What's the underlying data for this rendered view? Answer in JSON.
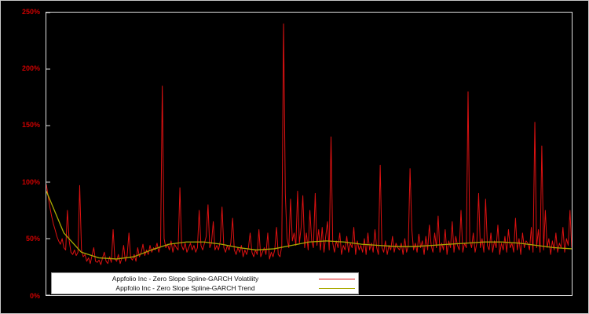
{
  "chart_data": {
    "type": "line",
    "title": "",
    "xlabel": "",
    "ylabel": "",
    "ylim": [
      0,
      250
    ],
    "yticks": [
      0,
      50,
      100,
      150,
      200,
      250
    ],
    "ytick_labels": [
      "0%",
      "50%",
      "100%",
      "150%",
      "200%",
      "250%"
    ],
    "xtick_labels": [],
    "grid": false,
    "background_color": "#000000",
    "plot_border_color": "#e0e0e0",
    "tick_label_color": "#cc0000",
    "legend_position": "bottom-left-inside",
    "legend_background": "#ffffff",
    "series": [
      {
        "name": "Appfolio Inc - Zero Slope Spline-GARCH Volatility",
        "color": "#dd1111",
        "stroke_width": 1,
        "values": [
          98,
          88,
          78,
          70,
          63,
          58,
          52,
          48,
          45,
          50,
          42,
          40,
          75,
          48,
          38,
          36,
          40,
          35,
          38,
          97,
          40,
          34,
          36,
          30,
          33,
          28,
          35,
          42,
          30,
          29,
          31,
          27,
          33,
          38,
          30,
          28,
          34,
          29,
          58,
          32,
          30,
          36,
          28,
          33,
          44,
          30,
          35,
          55,
          33,
          31,
          36,
          30,
          42,
          34,
          38,
          45,
          35,
          40,
          36,
          44,
          38,
          42,
          40,
          46,
          38,
          44,
          185,
          50,
          42,
          45,
          40,
          48,
          38,
          45,
          42,
          40,
          95,
          44,
          40,
          46,
          38,
          42,
          46,
          40,
          44,
          38,
          42,
          75,
          44,
          40,
          46,
          52,
          80,
          42,
          46,
          65,
          40,
          44,
          40,
          48,
          78,
          42,
          38,
          44,
          40,
          46,
          68,
          40,
          36,
          42,
          38,
          44,
          34,
          40,
          36,
          42,
          55,
          38,
          34,
          40,
          36,
          58,
          34,
          38,
          42,
          36,
          55,
          32,
          38,
          34,
          40,
          60,
          36,
          34,
          44,
          240,
          90,
          50,
          42,
          85,
          48,
          55,
          44,
          92,
          46,
          60,
          88,
          42,
          55,
          40,
          75,
          48,
          42,
          90,
          44,
          58,
          40,
          60,
          38,
          52,
          65,
          40,
          140,
          46,
          38,
          48,
          42,
          55,
          36,
          44,
          40,
          52,
          38,
          46,
          42,
          60,
          36,
          48,
          40,
          44,
          38,
          50,
          36,
          55,
          40,
          46,
          38,
          58,
          42,
          36,
          115,
          42,
          38,
          48,
          36,
          44,
          40,
          52,
          38,
          46,
          42,
          40,
          46,
          36,
          50,
          38,
          44,
          112,
          58,
          40,
          46,
          38,
          54,
          42,
          48,
          36,
          52,
          40,
          62,
          44,
          38,
          55,
          42,
          70,
          38,
          46,
          40,
          58,
          36,
          48,
          42,
          65,
          38,
          52,
          44,
          40,
          75,
          38,
          46,
          42,
          180,
          48,
          42,
          55,
          38,
          46,
          90,
          42,
          50,
          38,
          85,
          44,
          40,
          55,
          38,
          48,
          42,
          62,
          36,
          46,
          40,
          52,
          38,
          58,
          42,
          46,
          38,
          68,
          40,
          50,
          36,
          55,
          42,
          48,
          46,
          40,
          60,
          38,
          153,
          42,
          58,
          38,
          132,
          40,
          75,
          42,
          50,
          36,
          48,
          40,
          55,
          38,
          46,
          42,
          60,
          38,
          50,
          44,
          75,
          42
        ]
      },
      {
        "name": "Appfolio Inc - Zero Slope Spline-GARCH Trend",
        "color": "#aaaa00",
        "stroke_width": 1.3,
        "values": [
          92,
          55,
          38,
          33,
          32,
          34,
          40,
          45,
          47,
          47,
          45,
          42,
          40,
          41,
          44,
          47,
          48,
          47,
          45,
          44,
          43,
          43,
          44,
          45,
          46,
          47,
          47,
          46,
          44,
          42,
          41
        ]
      }
    ]
  }
}
